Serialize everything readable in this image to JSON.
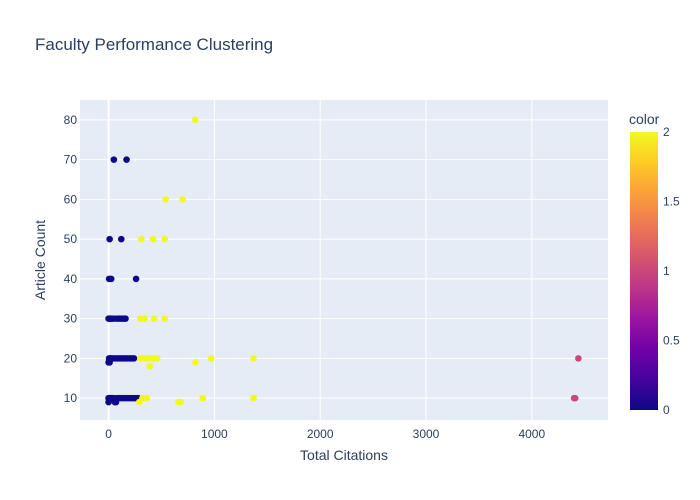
{
  "chart_data": {
    "type": "scatter",
    "title": "Faculty Performance Clustering",
    "xlabel": "Total Citations",
    "ylabel": "Article Count",
    "xlim": [
      -270,
      4720
    ],
    "ylim": [
      4.5,
      85
    ],
    "x_ticks": [
      0,
      1000,
      2000,
      3000,
      4000
    ],
    "x_tick_labels": [
      "0",
      "1000",
      "2000",
      "3000",
      "4000"
    ],
    "y_ticks": [
      10,
      20,
      30,
      40,
      50,
      60,
      70,
      80
    ],
    "y_tick_labels": [
      "10",
      "20",
      "30",
      "40",
      "50",
      "60",
      "70",
      "80"
    ],
    "grid": true,
    "colorbar": {
      "title": "color",
      "range": [
        0,
        2
      ],
      "ticks": [
        0,
        0.5,
        1,
        1.5,
        2
      ],
      "tick_labels": [
        "0",
        "0.5",
        "1",
        "1.5",
        "2"
      ],
      "colorscale": [
        "#0d0887",
        "#46039f",
        "#7201a8",
        "#9c179e",
        "#bd3786",
        "#d8576b",
        "#ed7953",
        "#fb9f3a",
        "#fdca26",
        "#f0f921"
      ]
    },
    "points": [
      {
        "x": 0,
        "y": 9,
        "c": 0
      },
      {
        "x": 0,
        "y": 10,
        "c": 0
      },
      {
        "x": 5,
        "y": 10,
        "c": 0
      },
      {
        "x": 10,
        "y": 10,
        "c": 0
      },
      {
        "x": 20,
        "y": 10,
        "c": 0
      },
      {
        "x": 30,
        "y": 10,
        "c": 0
      },
      {
        "x": 40,
        "y": 10,
        "c": 0
      },
      {
        "x": 50,
        "y": 10,
        "c": 0
      },
      {
        "x": 60,
        "y": 9,
        "c": 0
      },
      {
        "x": 70,
        "y": 9,
        "c": 0
      },
      {
        "x": 80,
        "y": 10,
        "c": 0
      },
      {
        "x": 100,
        "y": 10,
        "c": 0
      },
      {
        "x": 120,
        "y": 10,
        "c": 0
      },
      {
        "x": 140,
        "y": 10,
        "c": 0
      },
      {
        "x": 160,
        "y": 10,
        "c": 0
      },
      {
        "x": 180,
        "y": 10,
        "c": 0
      },
      {
        "x": 200,
        "y": 10,
        "c": 0
      },
      {
        "x": 220,
        "y": 10,
        "c": 0
      },
      {
        "x": 240,
        "y": 10,
        "c": 0
      },
      {
        "x": 260,
        "y": 10,
        "c": 0
      },
      {
        "x": 280,
        "y": 10,
        "c": 0
      },
      {
        "x": 0,
        "y": 19,
        "c": 0
      },
      {
        "x": 5,
        "y": 20,
        "c": 0
      },
      {
        "x": 10,
        "y": 19,
        "c": 0
      },
      {
        "x": 15,
        "y": 20,
        "c": 0
      },
      {
        "x": 25,
        "y": 20,
        "c": 0
      },
      {
        "x": 40,
        "y": 20,
        "c": 0
      },
      {
        "x": 60,
        "y": 20,
        "c": 0
      },
      {
        "x": 80,
        "y": 20,
        "c": 0
      },
      {
        "x": 100,
        "y": 20,
        "c": 0
      },
      {
        "x": 120,
        "y": 20,
        "c": 0
      },
      {
        "x": 140,
        "y": 20,
        "c": 0
      },
      {
        "x": 160,
        "y": 20,
        "c": 0
      },
      {
        "x": 180,
        "y": 20,
        "c": 0
      },
      {
        "x": 200,
        "y": 20,
        "c": 0
      },
      {
        "x": 220,
        "y": 20,
        "c": 0
      },
      {
        "x": 240,
        "y": 20,
        "c": 0
      },
      {
        "x": 0,
        "y": 30,
        "c": 0
      },
      {
        "x": 10,
        "y": 30,
        "c": 0
      },
      {
        "x": 20,
        "y": 30,
        "c": 0
      },
      {
        "x": 30,
        "y": 30,
        "c": 0
      },
      {
        "x": 50,
        "y": 30,
        "c": 0
      },
      {
        "x": 80,
        "y": 30,
        "c": 0
      },
      {
        "x": 100,
        "y": 30,
        "c": 0
      },
      {
        "x": 120,
        "y": 30,
        "c": 0
      },
      {
        "x": 140,
        "y": 30,
        "c": 0
      },
      {
        "x": 160,
        "y": 30,
        "c": 0
      },
      {
        "x": 5,
        "y": 40,
        "c": 0
      },
      {
        "x": 25,
        "y": 40,
        "c": 0
      },
      {
        "x": 260,
        "y": 40,
        "c": 0
      },
      {
        "x": 10,
        "y": 50,
        "c": 0
      },
      {
        "x": 120,
        "y": 50,
        "c": 0
      },
      {
        "x": 50,
        "y": 70,
        "c": 0
      },
      {
        "x": 170,
        "y": 70,
        "c": 0
      },
      {
        "x": 4400,
        "y": 10,
        "c": 1
      },
      {
        "x": 4410,
        "y": 10,
        "c": 1
      },
      {
        "x": 4440,
        "y": 20,
        "c": 1
      },
      {
        "x": 290,
        "y": 9,
        "c": 2
      },
      {
        "x": 320,
        "y": 10,
        "c": 2
      },
      {
        "x": 360,
        "y": 10,
        "c": 2
      },
      {
        "x": 660,
        "y": 9,
        "c": 2
      },
      {
        "x": 680,
        "y": 9,
        "c": 2
      },
      {
        "x": 890,
        "y": 10,
        "c": 2
      },
      {
        "x": 1370,
        "y": 10,
        "c": 2
      },
      {
        "x": 300,
        "y": 20,
        "c": 2
      },
      {
        "x": 330,
        "y": 20,
        "c": 2
      },
      {
        "x": 360,
        "y": 20,
        "c": 2
      },
      {
        "x": 390,
        "y": 18,
        "c": 2
      },
      {
        "x": 400,
        "y": 20,
        "c": 2
      },
      {
        "x": 430,
        "y": 20,
        "c": 2
      },
      {
        "x": 460,
        "y": 20,
        "c": 2
      },
      {
        "x": 820,
        "y": 19,
        "c": 2
      },
      {
        "x": 970,
        "y": 20,
        "c": 2
      },
      {
        "x": 1370,
        "y": 20,
        "c": 2
      },
      {
        "x": 300,
        "y": 30,
        "c": 2
      },
      {
        "x": 340,
        "y": 30,
        "c": 2
      },
      {
        "x": 430,
        "y": 30,
        "c": 2
      },
      {
        "x": 530,
        "y": 30,
        "c": 2
      },
      {
        "x": 310,
        "y": 50,
        "c": 2
      },
      {
        "x": 420,
        "y": 50,
        "c": 2
      },
      {
        "x": 530,
        "y": 50,
        "c": 2
      },
      {
        "x": 540,
        "y": 60,
        "c": 2
      },
      {
        "x": 700,
        "y": 60,
        "c": 2
      },
      {
        "x": 820,
        "y": 80,
        "c": 2
      }
    ]
  }
}
